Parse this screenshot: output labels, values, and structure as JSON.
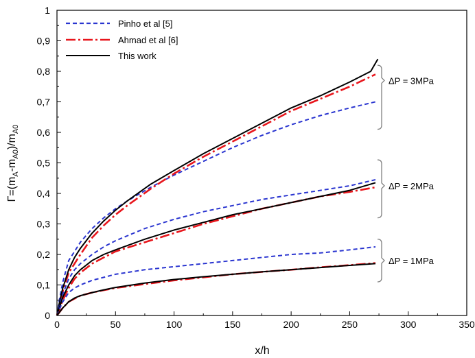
{
  "chart_data": {
    "type": "line",
    "xlabel": "x/h",
    "ylabel": "Γ=(m_A-m_A0)/m_A0",
    "ylabel_parts": {
      "prefix": "Γ=(m",
      "sub1": "A",
      "mid": "-m",
      "sub2": "A0",
      "close": ")/m",
      "sub3": "A0"
    },
    "xlim": [
      0,
      350
    ],
    "ylim": [
      0,
      1
    ],
    "xticks": [
      "0",
      "50",
      "100",
      "150",
      "200",
      "250",
      "300",
      "350"
    ],
    "yticks": [
      "0",
      "0,1",
      "0,2",
      "0,3",
      "0,4",
      "0,5",
      "0,6",
      "0,7",
      "0,8",
      "0,9",
      "1"
    ],
    "grid": false,
    "legend_position": "top-left",
    "legend": [
      {
        "label": "Pinho et al [5]",
        "color": "#2a35d0",
        "style": "dashed"
      },
      {
        "label": "Ahmad et al [6]",
        "color": "#e8161c",
        "style": "dashdot"
      },
      {
        "label": "This work",
        "color": "#000000",
        "style": "solid"
      }
    ],
    "annotations": [
      {
        "text": "ΔP = 3MPa",
        "bracket": [
          0.82,
          0.61
        ],
        "label_y": 0.77
      },
      {
        "text": "ΔP = 2MPa",
        "bracket": [
          0.51,
          0.32
        ],
        "label_y": 0.425
      },
      {
        "text": "ΔP = 1MPa",
        "bracket": [
          0.25,
          0.11
        ],
        "label_y": 0.18
      }
    ],
    "series": [
      {
        "legend_index": 0,
        "color": "#2a35d0",
        "style": "dashed",
        "x": [
          0,
          2,
          5,
          10,
          15,
          20,
          30,
          40,
          50,
          60,
          80,
          100,
          125,
          150,
          175,
          200,
          225,
          250,
          272
        ],
        "y": [
          0,
          0.05,
          0.11,
          0.18,
          0.21,
          0.24,
          0.285,
          0.32,
          0.35,
          0.375,
          0.42,
          0.46,
          0.505,
          0.55,
          0.59,
          0.625,
          0.655,
          0.68,
          0.7
        ]
      },
      {
        "legend_index": 1,
        "color": "#e8161c",
        "style": "dashdot",
        "x": [
          0,
          2,
          5,
          10,
          15,
          20,
          30,
          40,
          50,
          60,
          80,
          100,
          125,
          150,
          175,
          200,
          225,
          250,
          272
        ],
        "y": [
          0,
          0.03,
          0.08,
          0.14,
          0.17,
          0.2,
          0.255,
          0.295,
          0.33,
          0.36,
          0.415,
          0.465,
          0.52,
          0.57,
          0.62,
          0.67,
          0.71,
          0.75,
          0.79
        ]
      },
      {
        "legend_index": 2,
        "color": "#000000",
        "style": "solid",
        "x": [
          0,
          2,
          5,
          10,
          15,
          20,
          30,
          40,
          50,
          60,
          80,
          100,
          125,
          150,
          175,
          200,
          225,
          250,
          268,
          274
        ],
        "y": [
          0,
          0.04,
          0.09,
          0.15,
          0.19,
          0.22,
          0.27,
          0.31,
          0.345,
          0.375,
          0.43,
          0.475,
          0.53,
          0.58,
          0.63,
          0.68,
          0.72,
          0.765,
          0.8,
          0.84
        ]
      },
      {
        "legend_index": 0,
        "color": "#2a35d0",
        "style": "dashed",
        "x": [
          0,
          2,
          5,
          10,
          15,
          20,
          30,
          40,
          50,
          75,
          100,
          125,
          150,
          175,
          200,
          225,
          250,
          272
        ],
        "y": [
          0,
          0.03,
          0.07,
          0.12,
          0.15,
          0.17,
          0.2,
          0.225,
          0.245,
          0.285,
          0.315,
          0.34,
          0.36,
          0.38,
          0.395,
          0.41,
          0.425,
          0.445
        ]
      },
      {
        "legend_index": 1,
        "color": "#e8161c",
        "style": "dashdot",
        "x": [
          0,
          2,
          5,
          10,
          15,
          20,
          30,
          40,
          50,
          75,
          100,
          125,
          150,
          175,
          200,
          225,
          250,
          272
        ],
        "y": [
          0,
          0.02,
          0.05,
          0.09,
          0.12,
          0.14,
          0.17,
          0.19,
          0.21,
          0.24,
          0.27,
          0.3,
          0.325,
          0.35,
          0.37,
          0.39,
          0.405,
          0.42
        ]
      },
      {
        "legend_index": 2,
        "color": "#000000",
        "style": "solid",
        "x": [
          0,
          2,
          5,
          10,
          15,
          20,
          30,
          40,
          50,
          75,
          100,
          125,
          150,
          175,
          200,
          225,
          250,
          272
        ],
        "y": [
          0,
          0.025,
          0.06,
          0.1,
          0.13,
          0.15,
          0.18,
          0.2,
          0.215,
          0.25,
          0.28,
          0.305,
          0.33,
          0.35,
          0.37,
          0.39,
          0.41,
          0.435
        ]
      },
      {
        "legend_index": 0,
        "color": "#2a35d0",
        "style": "dashed",
        "x": [
          0,
          2,
          5,
          10,
          15,
          20,
          30,
          40,
          50,
          75,
          100,
          125,
          150,
          175,
          200,
          225,
          250,
          272
        ],
        "y": [
          0,
          0.02,
          0.045,
          0.075,
          0.09,
          0.1,
          0.115,
          0.125,
          0.135,
          0.15,
          0.16,
          0.17,
          0.18,
          0.19,
          0.2,
          0.205,
          0.215,
          0.225
        ]
      },
      {
        "legend_index": 1,
        "color": "#e8161c",
        "style": "dashdot",
        "x": [
          0,
          2,
          5,
          10,
          15,
          20,
          30,
          40,
          50,
          75,
          100,
          125,
          150,
          175,
          200,
          225,
          250,
          272
        ],
        "y": [
          0,
          0.01,
          0.025,
          0.045,
          0.055,
          0.065,
          0.075,
          0.083,
          0.09,
          0.103,
          0.115,
          0.125,
          0.135,
          0.143,
          0.15,
          0.158,
          0.165,
          0.172
        ]
      },
      {
        "legend_index": 2,
        "color": "#000000",
        "style": "solid",
        "x": [
          0,
          2,
          5,
          10,
          15,
          20,
          30,
          40,
          50,
          75,
          100,
          125,
          150,
          175,
          200,
          225,
          250,
          272
        ],
        "y": [
          0,
          0.01,
          0.025,
          0.045,
          0.057,
          0.065,
          0.075,
          0.084,
          0.092,
          0.106,
          0.118,
          0.127,
          0.135,
          0.143,
          0.15,
          0.157,
          0.164,
          0.17
        ]
      }
    ]
  }
}
